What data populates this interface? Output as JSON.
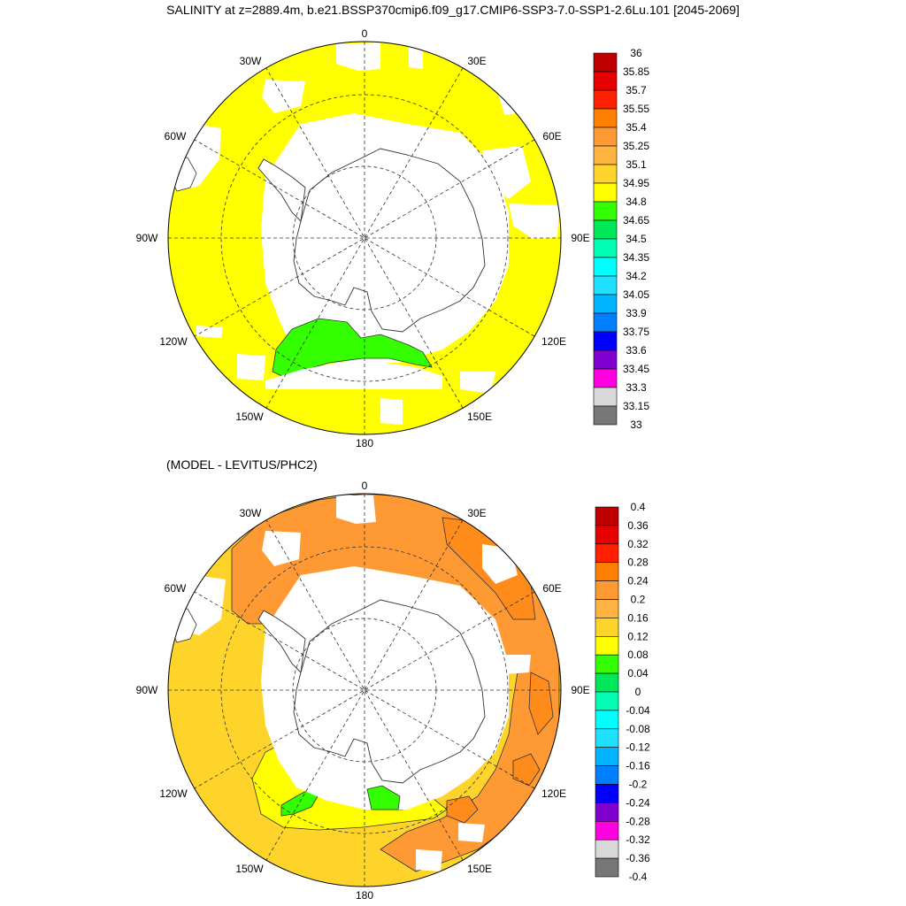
{
  "title": "SALINITY at z=2889.4m, b.e21.BSSP370cmip6.f09_g17.CMIP6-SSP3-7.0-SSP1-2.6Lu.101 [2045-2069]",
  "subtitle": "(MODEL - LEVITUS/PHC2)",
  "colors": {
    "land": "#ffffff",
    "coast": "#333333",
    "grid": "#333333",
    "missing": "#ffffff"
  },
  "maps": [
    {
      "name": "salinity",
      "lon_labels": [
        "0",
        "30E",
        "60E",
        "90E",
        "120E",
        "150E",
        "180",
        "150W",
        "120W",
        "90W",
        "60W",
        "30W"
      ],
      "dominant_color": "#ffff00",
      "regions": [
        {
          "label": "34.65-34.8",
          "color": "#33ff00"
        }
      ]
    },
    {
      "name": "difference",
      "lon_labels": [
        "0",
        "30E",
        "60E",
        "90E",
        "120E",
        "150E",
        "180",
        "150W",
        "120W",
        "90W",
        "60W",
        "30W"
      ],
      "dominant_color": "#ffd42a",
      "regions": [
        {
          "label": "0.2-0.24",
          "color": "#ff9933"
        },
        {
          "label": "0.08-0.12",
          "color": "#ffff00"
        },
        {
          "label": "0.04-0.08",
          "color": "#33ff00"
        }
      ]
    }
  ],
  "colorbars": [
    {
      "name": "salinity",
      "labels": [
        "36",
        "35.85",
        "35.7",
        "35.55",
        "35.4",
        "35.25",
        "35.1",
        "34.95",
        "34.8",
        "34.65",
        "34.5",
        "34.35",
        "34.2",
        "34.05",
        "33.9",
        "33.75",
        "33.6",
        "33.45",
        "33.3",
        "33.15",
        "33"
      ],
      "colors": [
        "#c00000",
        "#e60000",
        "#ff2000",
        "#ff8000",
        "#ff9933",
        "#ffb340",
        "#ffd42a",
        "#ffff00",
        "#33ff00",
        "#00e85a",
        "#00ffb4",
        "#00ffff",
        "#20e0ff",
        "#00b4ff",
        "#0080ff",
        "#0000ff",
        "#8000d0",
        "#ff00e0",
        "#d9d9d9",
        "#777777"
      ]
    },
    {
      "name": "difference",
      "labels": [
        "0.4",
        "0.36",
        "0.32",
        "0.28",
        "0.24",
        "0.2",
        "0.16",
        "0.12",
        "0.08",
        "0.04",
        "0",
        "-0.04",
        "-0.08",
        "-0.12",
        "-0.16",
        "-0.2",
        "-0.24",
        "-0.28",
        "-0.32",
        "-0.36",
        "-0.4"
      ],
      "colors": [
        "#c00000",
        "#e60000",
        "#ff2000",
        "#ff8000",
        "#ff9933",
        "#ffb340",
        "#ffd42a",
        "#ffff00",
        "#33ff00",
        "#00e85a",
        "#00ffb4",
        "#00ffff",
        "#20e0ff",
        "#00b4ff",
        "#0080ff",
        "#0000ff",
        "#8000d0",
        "#ff00e0",
        "#d9d9d9",
        "#777777"
      ]
    }
  ]
}
